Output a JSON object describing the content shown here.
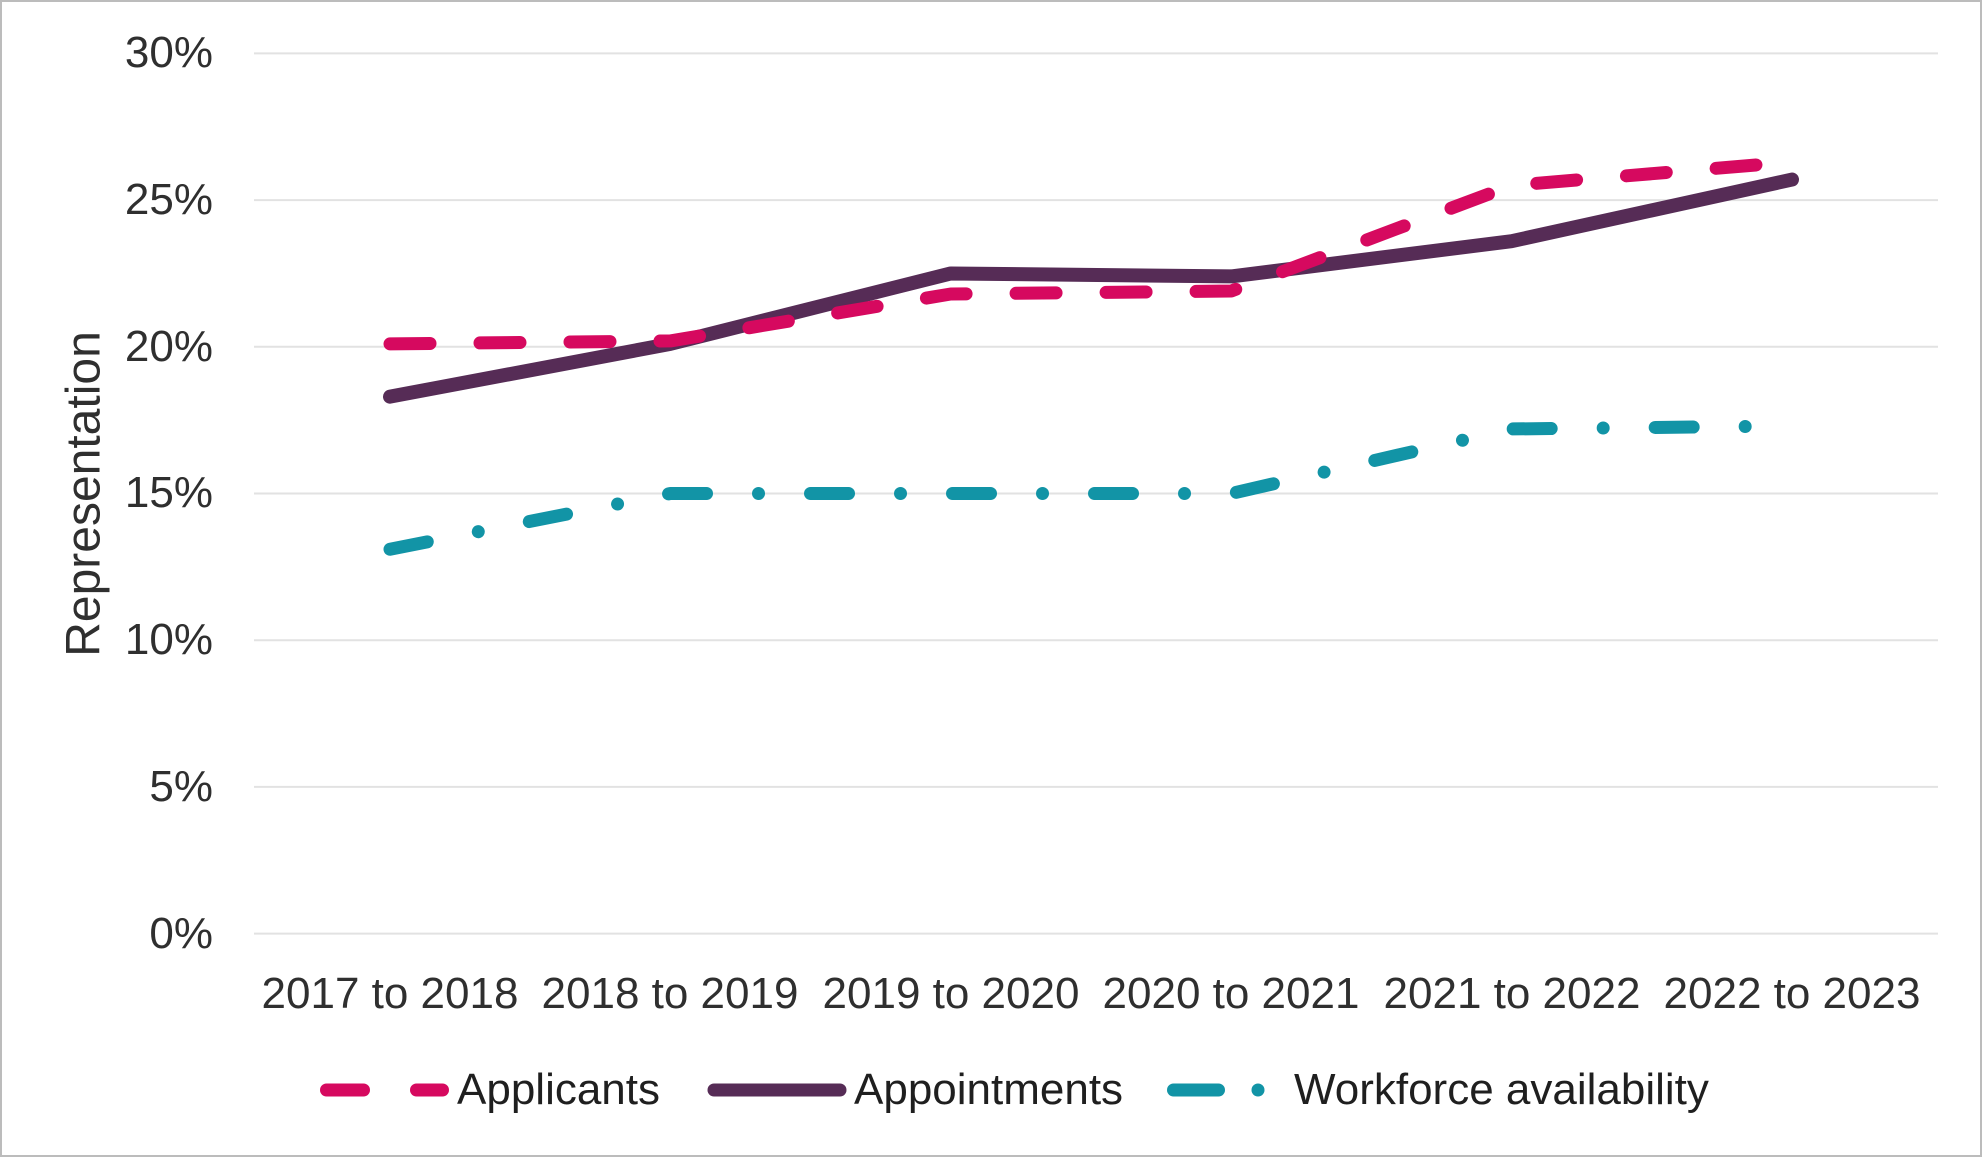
{
  "chart_data": {
    "type": "line",
    "title": "",
    "ylabel": "Representation",
    "xlabel": "",
    "categories": [
      "2017 to 2018",
      "2018 to 2019",
      "2019 to 2020",
      "2020 to 2021",
      "2021 to 2022",
      "2022 to 2023"
    ],
    "ytick_labels": [
      "30%",
      "25%",
      "20%",
      "15%",
      "10%",
      "5%",
      "0%"
    ],
    "ytick_values": [
      30,
      25,
      20,
      15,
      10,
      5,
      0
    ],
    "ylim": [
      0,
      30
    ],
    "grid": "horizontal-light-gray",
    "legend_position": "bottom",
    "colors": {
      "grid": "#e2e2e2",
      "axis_text": "#2f2f2f"
    },
    "series": [
      {
        "name": "Applicants",
        "style": "dashed",
        "color": "#d6095f",
        "values": [
          20.1,
          20.2,
          21.8,
          21.9,
          25.5,
          26.3
        ]
      },
      {
        "name": "Appointments",
        "style": "solid",
        "color": "#562c56",
        "values": [
          18.3,
          20.1,
          22.5,
          22.4,
          23.6,
          25.7
        ]
      },
      {
        "name": "Workforce availability",
        "style": "dash-dot",
        "color": "#1294a6",
        "values": [
          13.1,
          15.0,
          15.0,
          15.0,
          17.2,
          17.3
        ]
      }
    ]
  }
}
